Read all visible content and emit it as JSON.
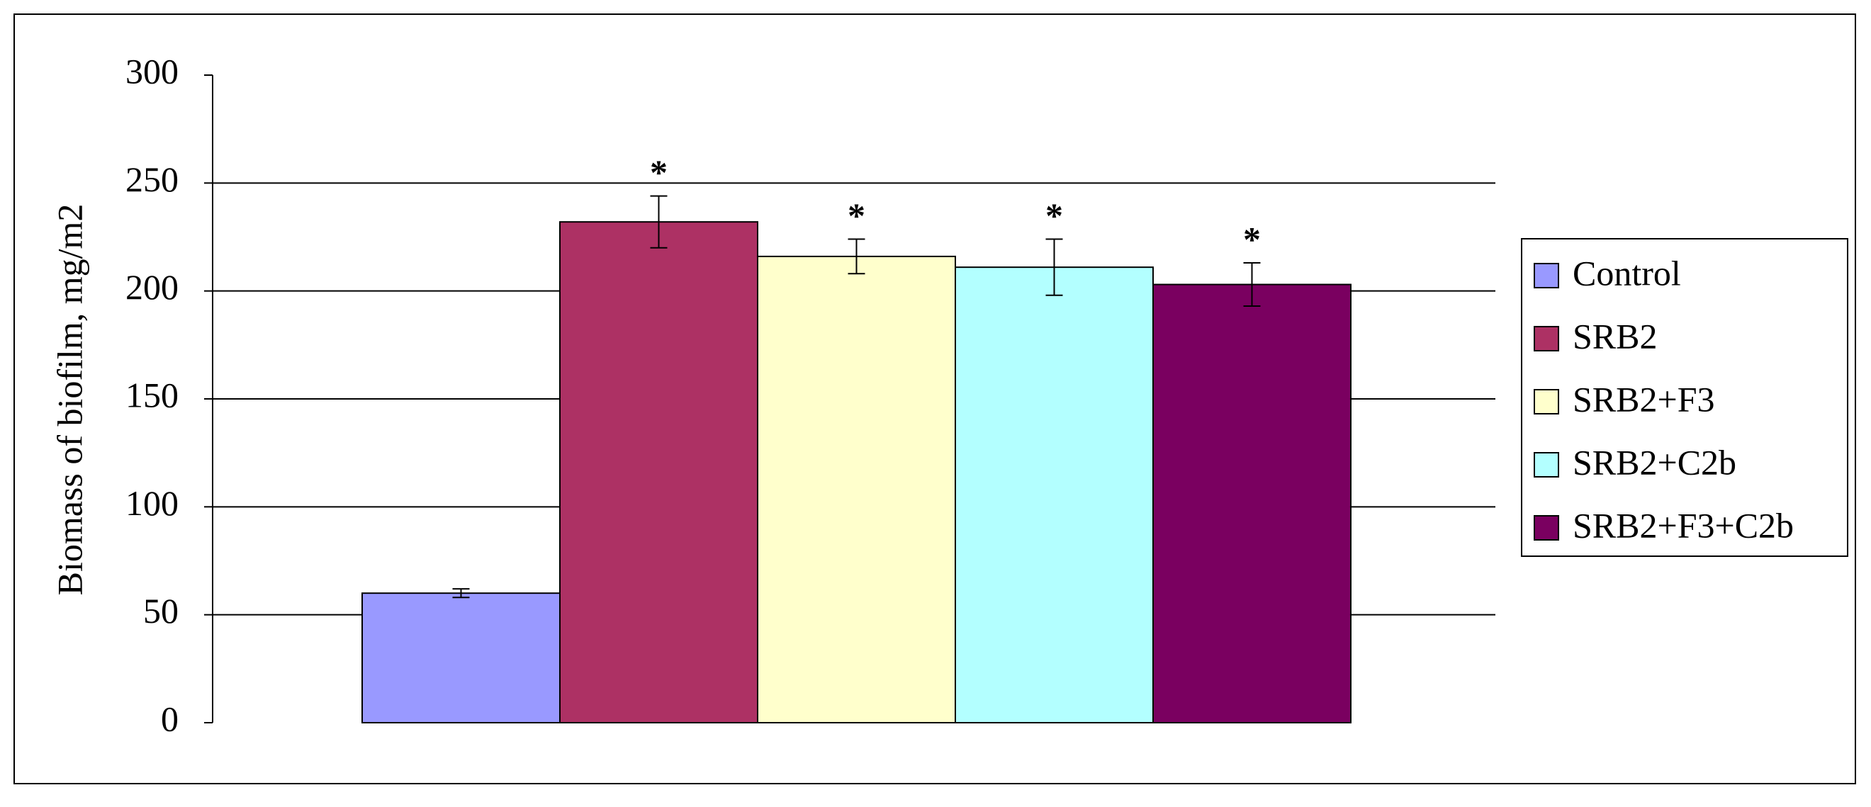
{
  "chart_data": {
    "type": "bar",
    "y_label": "Biomass of biofilm, mg/m2",
    "categories": [
      null
    ],
    "series": [
      {
        "name": "Control",
        "color": "#9999ff",
        "values": [
          60
        ],
        "errors": [
          2
        ]
      },
      {
        "name": "SRB2",
        "color": "#ad3164",
        "values": [
          232
        ],
        "errors": [
          12
        ],
        "label": "*"
      },
      {
        "name": "SRB2+F3",
        "color": "#ffffcc",
        "values": [
          216
        ],
        "errors": [
          8
        ],
        "label": "*"
      },
      {
        "name": "SRB2+C2b",
        "color": "#b3ffff",
        "values": [
          211
        ],
        "errors": [
          13
        ],
        "label": "*"
      },
      {
        "name": "SRB2+F3+C2b",
        "color": "#7a0060",
        "values": [
          203
        ],
        "errors": [
          10
        ],
        "label": "*"
      }
    ],
    "ylim": [
      0,
      300
    ],
    "yticks": [
      0,
      50,
      100,
      150,
      200,
      250,
      300
    ],
    "grid": true,
    "legend": "right"
  }
}
